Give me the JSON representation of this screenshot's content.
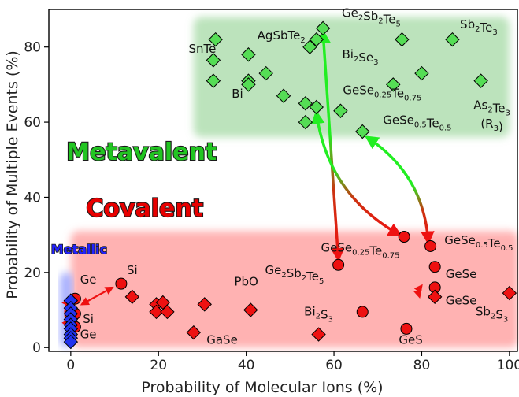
{
  "chart_data": {
    "type": "scatter",
    "xlabel": "Probability of Molecular Ions (%)",
    "ylabel": "Probability of Multiple Events (%)",
    "xlim": [
      -5,
      102
    ],
    "ylim": [
      -1,
      90
    ],
    "xticks": [
      "0",
      "20",
      "40",
      "60",
      "80",
      "100"
    ],
    "yticks": [
      "0",
      "20",
      "40",
      "60",
      "80"
    ],
    "regions": [
      {
        "label": "Metavalent",
        "x": [
          28,
          100
        ],
        "y": [
          56,
          88
        ],
        "color": "#8fd08f",
        "text_color": "#22c522"
      },
      {
        "label": "Covalent",
        "x": [
          0,
          102
        ],
        "y": [
          0,
          31
        ],
        "color": "#ff7f7f",
        "text_color": "#e80000"
      },
      {
        "label": "Metallic",
        "x": [
          -2.5,
          0.5
        ],
        "y": [
          0,
          20
        ],
        "color": "#9aa4ff",
        "text_color": "#2222ff"
      }
    ],
    "series": [
      {
        "marker": "diamond",
        "color": "#55dd55",
        "points": [
          [
            33,
            82
          ],
          [
            32.5,
            76.5
          ],
          [
            32.5,
            71
          ],
          [
            40.5,
            78
          ],
          [
            40.5,
            71
          ],
          [
            40.5,
            70
          ],
          [
            44.5,
            73
          ],
          [
            48.5,
            67
          ],
          [
            54.5,
            80
          ],
          [
            56,
            82
          ],
          [
            57.5,
            85
          ],
          [
            53.5,
            65
          ],
          [
            56,
            64
          ],
          [
            53.5,
            60
          ],
          [
            61.5,
            63
          ],
          [
            75.5,
            82
          ],
          [
            87,
            82
          ],
          [
            73.5,
            70
          ],
          [
            80,
            73
          ],
          [
            93.5,
            71
          ],
          [
            66.5,
            57.5
          ]
        ]
      },
      {
        "marker": "circle",
        "color": "#ee1111",
        "points": [
          [
            1,
            13
          ],
          [
            1,
            9
          ],
          [
            1,
            5.5
          ],
          [
            11.5,
            17
          ],
          [
            61,
            22
          ],
          [
            66.5,
            9.5
          ],
          [
            76.5,
            5
          ],
          [
            76,
            29.5
          ],
          [
            82,
            27
          ],
          [
            83,
            21.5
          ],
          [
            83,
            16
          ]
        ]
      },
      {
        "marker": "diamond",
        "color": "#ee1111",
        "points": [
          [
            14,
            13.5
          ],
          [
            19.5,
            11.5
          ],
          [
            21,
            12
          ],
          [
            19.5,
            9.5
          ],
          [
            22,
            9.5
          ],
          [
            28,
            4
          ],
          [
            30.5,
            11.5
          ],
          [
            41,
            10
          ],
          [
            56.5,
            3.5
          ],
          [
            83,
            13.5
          ],
          [
            100,
            14.5
          ]
        ]
      },
      {
        "marker": "diamond",
        "color": "#2233ee",
        "points": [
          [
            0,
            12.5
          ],
          [
            0,
            10.5
          ],
          [
            0,
            9
          ],
          [
            0,
            7.5
          ],
          [
            0,
            6
          ],
          [
            0,
            5
          ],
          [
            0,
            3.5
          ],
          [
            0,
            2.5
          ],
          [
            0,
            1.5
          ]
        ]
      }
    ],
    "annotations": [
      {
        "text": "SnTe",
        "x": 30,
        "y": 78.5
      },
      {
        "text": "AgSbTe2",
        "x": 48,
        "y": 82
      },
      {
        "text": "Ge2Sb2Te5",
        "x": 68.5,
        "y": 88
      },
      {
        "text": "Sb2Te3",
        "x": 93,
        "y": 85
      },
      {
        "text": "Bi2Se3",
        "x": 66,
        "y": 77
      },
      {
        "text": "Bi",
        "x": 38,
        "y": 66.5
      },
      {
        "text": "GeSe0.25Te0.75",
        "x": 71,
        "y": 67.5
      },
      {
        "text": "As2Te3",
        "x": 96,
        "y": 63.5
      },
      {
        "text": "(R3m)",
        "x": 96,
        "y": 58.5
      },
      {
        "text": "GeSe0.5Te0.5",
        "x": 79,
        "y": 59.5
      },
      {
        "text": "GeSe0.25Te0.75",
        "x": 66,
        "y": 25.5
      },
      {
        "text": "GeSe0.5Te0.5",
        "x": 93,
        "y": 27.5
      },
      {
        "text": "Ge2Sb2Te5",
        "x": 51,
        "y": 19.5
      },
      {
        "text": "PbO",
        "x": 40,
        "y": 16.5
      },
      {
        "text": "GeSe",
        "x": 89,
        "y": 18.5
      },
      {
        "text": "GeSe",
        "x": 89,
        "y": 11.5
      },
      {
        "text": "Bi2S3",
        "x": 56.5,
        "y": 8.5
      },
      {
        "text": "GeS",
        "x": 77.5,
        "y": 1
      },
      {
        "text": "Sb2S3",
        "x": 96,
        "y": 8.5
      },
      {
        "text": "GaSe",
        "x": 34.5,
        "y": 1
      },
      {
        "text": "Si",
        "x": 14,
        "y": 19.5
      },
      {
        "text": "Ge",
        "x": 4,
        "y": 17
      },
      {
        "text": "Si",
        "x": 4,
        "y": 6.5
      },
      {
        "text": "Ge",
        "x": 4,
        "y": 2.5
      }
    ],
    "arrows": [
      {
        "from": [
          57.5,
          84
        ],
        "to": [
          61,
          23.5
        ],
        "style": "green-to-red",
        "curve": 0
      },
      {
        "from": [
          56,
          62.5
        ],
        "to": [
          75,
          30
        ],
        "style": "green-to-red",
        "curve": 1
      },
      {
        "from": [
          67.5,
          56
        ],
        "to": [
          81.5,
          28
        ],
        "style": "green-to-red",
        "curve": -1
      },
      {
        "from": [
          9.5,
          16
        ],
        "to": [
          2.5,
          11.5
        ],
        "style": "double-red",
        "curve": 0
      },
      {
        "from": [
          -0.5,
          13
        ],
        "to": [
          -0.5,
          5.5
        ],
        "style": "double-red",
        "curve": 1
      },
      {
        "from": [
          80,
          16.5
        ],
        "to": [
          79.5,
          13.5
        ],
        "style": "double-red",
        "curve": 1
      }
    ]
  }
}
